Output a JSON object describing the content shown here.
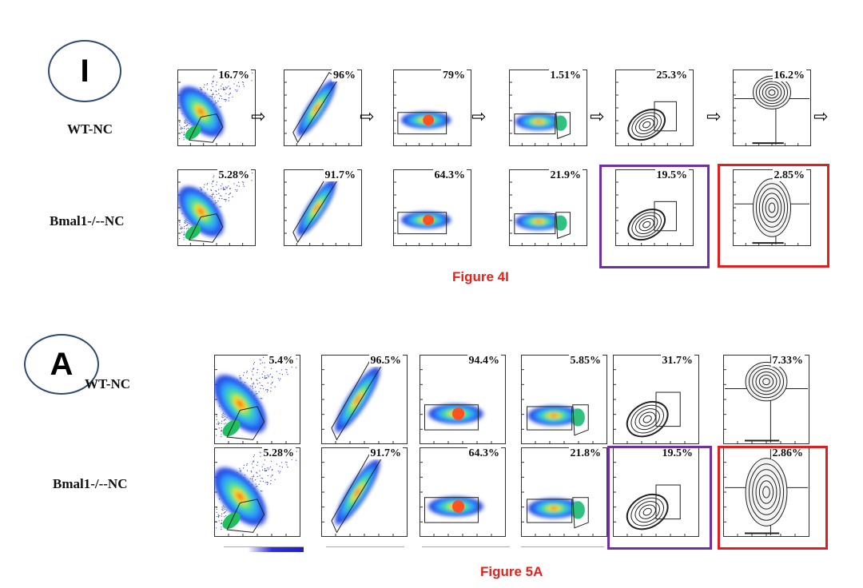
{
  "figure_I": {
    "badge": "I",
    "caption": "Figure 4I",
    "rows": [
      {
        "label": "WT-NC",
        "percents": [
          "16.7%",
          "96%",
          "79%",
          "1.51%",
          "25.3%",
          "16.2%"
        ]
      },
      {
        "label": "Bmal1-/--NC",
        "percents": [
          "5.28%",
          "91.7%",
          "64.3%",
          "21.9%",
          "19.5%",
          "2.85%"
        ]
      }
    ]
  },
  "figure_A": {
    "badge": "A",
    "caption": "Figure 5A",
    "rows": [
      {
        "label": "WT-NC",
        "percents": [
          "5.4%",
          "96.5%",
          "94.4%",
          "5.85%",
          "31.7%",
          "7.33%"
        ]
      },
      {
        "label": "Bmal1-/--NC",
        "percents": [
          "5.28%",
          "91.7%",
          "64.3%",
          "21.8%",
          "19.5%",
          "2.86%"
        ]
      }
    ]
  },
  "colors": {
    "badge_border": "#2f4a72",
    "caption": "#e8201a",
    "purple_box": "#7030a0",
    "red_box": "#e02020"
  },
  "icons": {
    "flow_arrow": "right-arrow-icon"
  }
}
